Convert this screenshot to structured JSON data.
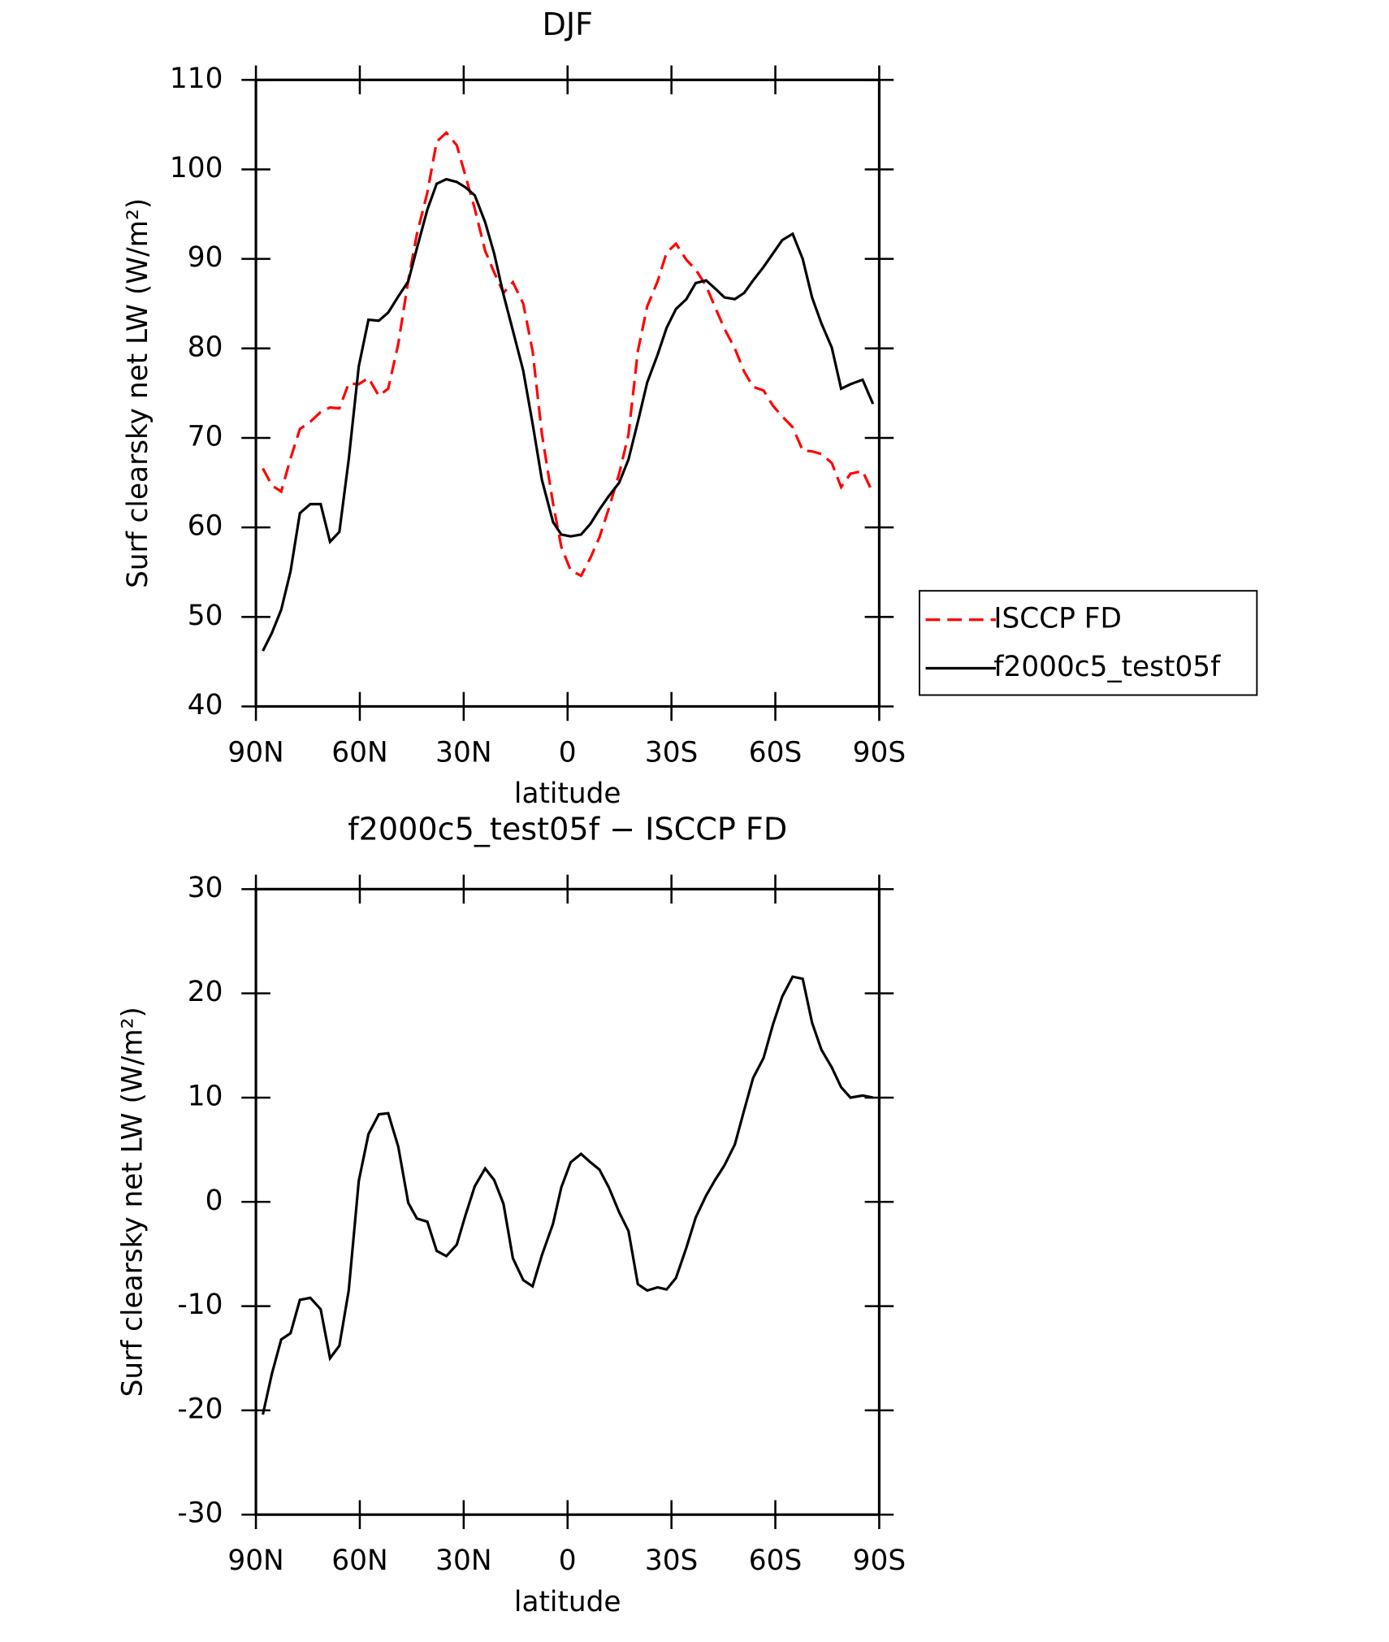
{
  "chart_data": [
    {
      "type": "line",
      "title": "DJF",
      "xlabel": "latitude",
      "ylabel": "Surf clearsky net LW (W/m²)",
      "x": [
        88,
        85.4,
        82.7,
        80,
        77.3,
        74.3,
        71.3,
        68.6,
        65.9,
        63.2,
        60.3,
        57.5,
        54.5,
        51.8,
        48.9,
        46,
        43.5,
        40.5,
        37.8,
        35,
        32,
        29.5,
        26.8,
        23.8,
        21.2,
        18.5,
        15.8,
        12.8,
        10.1,
        7.4,
        4.2,
        1.8,
        -0.9,
        -3.9,
        -6.6,
        -9.2,
        -11.9,
        -14.9,
        -17.6,
        -20.3,
        -23,
        -26,
        -28.6,
        -31.3,
        -34.3,
        -37,
        -40,
        -42.6,
        -45.3,
        -48.3,
        -51,
        -53.6,
        -56.6,
        -59.3,
        -62,
        -65,
        -67.9,
        -70.6,
        -73.3,
        -76.3,
        -79,
        -81.7,
        -85.2,
        -88.2
      ],
      "xlim": [
        90,
        -90
      ],
      "xticks": [
        {
          "value": 90,
          "label": "90N"
        },
        {
          "value": 60,
          "label": "60N"
        },
        {
          "value": 30,
          "label": "30N"
        },
        0,
        {
          "value": -30,
          "label": "30S"
        },
        {
          "value": -60,
          "label": "60S"
        },
        {
          "value": -90,
          "label": "90S"
        }
      ],
      "ylim": [
        40,
        110
      ],
      "yticks": [
        40,
        50,
        60,
        70,
        80,
        90,
        100,
        110
      ],
      "legend": "right",
      "series": [
        {
          "name": "ISCCP FD",
          "color": "#ff0000",
          "line_style": "dashed",
          "values": [
            66.6,
            64.7,
            64,
            67.7,
            71,
            71.8,
            72.9,
            73.4,
            73.3,
            76.1,
            76,
            76.7,
            74.7,
            75.5,
            80.5,
            87.6,
            92.8,
            97.4,
            103.1,
            104.1,
            102.7,
            99.3,
            95.6,
            90.9,
            88.5,
            86.2,
            87.4,
            85,
            79.7,
            70.4,
            62.7,
            57.8,
            55.2,
            54.6,
            56.6,
            58.9,
            62.1,
            66,
            70.4,
            79.7,
            84.7,
            87.5,
            90.7,
            91.7,
            89.9,
            88.8,
            87,
            84.6,
            82.2,
            80,
            77.4,
            75.7,
            75.3,
            73.6,
            72.4,
            71.2,
            68.6,
            68.5,
            68.2,
            67.2,
            64.5,
            66,
            66.3,
            63.8
          ]
        },
        {
          "name": "f2000c5_test05f",
          "color": "#000000",
          "line_style": "solid",
          "values": [
            46.2,
            48.2,
            50.8,
            55.1,
            61.6,
            62.6,
            62.6,
            58.4,
            59.5,
            67.6,
            78,
            83.2,
            83.1,
            84,
            85.8,
            87.5,
            91.2,
            95.5,
            98.4,
            98.9,
            98.6,
            98,
            97.1,
            94.1,
            90.6,
            86,
            82,
            77.5,
            71.6,
            65.3,
            60.6,
            59.2,
            59,
            59.2,
            60.4,
            62,
            63.5,
            65,
            67.6,
            71.8,
            76.2,
            79.3,
            82.3,
            84.4,
            85.5,
            87.3,
            87.6,
            86.7,
            85.7,
            85.5,
            86.2,
            87.6,
            89.1,
            90.6,
            92.1,
            92.8,
            90,
            85.7,
            82.8,
            80.1,
            75.5,
            76,
            76.5,
            73.8
          ]
        }
      ]
    },
    {
      "type": "line",
      "title": "f2000c5_test05f − ISCCP FD",
      "xlabel": "latitude",
      "ylabel": "Surf clearsky net LW (W/m²)",
      "x": [
        88,
        85.4,
        82.7,
        80,
        77.3,
        74.3,
        71.3,
        68.6,
        65.9,
        63.2,
        60.3,
        57.5,
        54.5,
        51.8,
        48.9,
        46,
        43.5,
        40.5,
        37.8,
        35,
        32,
        29.5,
        26.8,
        23.8,
        21.2,
        18.5,
        15.8,
        12.8,
        10.1,
        7.4,
        4.2,
        1.8,
        -0.9,
        -3.9,
        -6.6,
        -9.2,
        -11.9,
        -14.9,
        -17.6,
        -20.3,
        -23,
        -26,
        -28.6,
        -31.3,
        -34.3,
        -37,
        -40,
        -42.6,
        -45.3,
        -48.3,
        -51,
        -53.6,
        -56.6,
        -59.3,
        -62,
        -65,
        -67.9,
        -70.6,
        -73.3,
        -76.3,
        -79,
        -81.7,
        -85.2,
        -88.2
      ],
      "xlim": [
        90,
        -90
      ],
      "xticks": [
        {
          "value": 90,
          "label": "90N"
        },
        {
          "value": 60,
          "label": "60N"
        },
        {
          "value": 30,
          "label": "30N"
        },
        0,
        {
          "value": -30,
          "label": "30S"
        },
        {
          "value": -60,
          "label": "60S"
        },
        {
          "value": -90,
          "label": "90S"
        }
      ],
      "ylim": [
        -30,
        30
      ],
      "yticks": [
        -30,
        -20,
        -10,
        0,
        10,
        20,
        30
      ],
      "color": "#000000",
      "values": [
        -20.4,
        -16.5,
        -13.2,
        -12.6,
        -9.4,
        -9.2,
        -10.3,
        -15,
        -13.8,
        -8.5,
        2,
        6.5,
        8.4,
        8.5,
        5.3,
        -0.1,
        -1.6,
        -1.9,
        -4.7,
        -5.2,
        -4.1,
        -1.3,
        1.5,
        3.2,
        2.1,
        -0.2,
        -5.4,
        -7.5,
        -8.1,
        -5.1,
        -2.1,
        1.4,
        3.8,
        4.6,
        3.8,
        3.1,
        1.4,
        -1,
        -2.8,
        -7.9,
        -8.5,
        -8.2,
        -8.4,
        -7.3,
        -4.4,
        -1.5,
        0.6,
        2.1,
        3.5,
        5.5,
        8.8,
        11.9,
        13.8,
        17,
        19.7,
        21.6,
        21.4,
        17.2,
        14.6,
        12.9,
        11,
        10,
        10.2,
        10
      ]
    }
  ]
}
